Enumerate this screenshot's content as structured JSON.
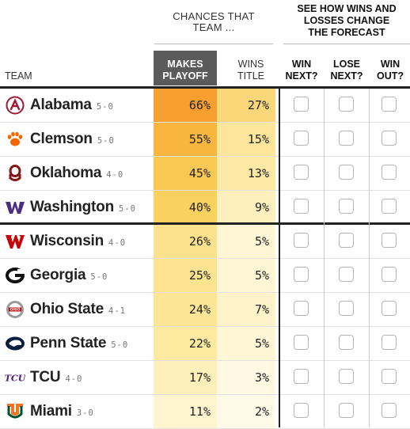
{
  "header": {
    "chances_line1": "CHANCES THAT",
    "chances_line2": "TEAM ...",
    "forecast_line1": "SEE HOW WINS AND",
    "forecast_line2": "LOSSES CHANGE",
    "forecast_line3": "THE FORECAST"
  },
  "columns": {
    "team": "TEAM",
    "makes_line1": "MAKES",
    "makes_line2": "PLAYOFF",
    "wins_line1": "WINS",
    "wins_line2": "TITLE",
    "win_next_line1": "WIN",
    "win_next_line2": "NEXT?",
    "lose_next_line1": "LOSE",
    "lose_next_line2": "NEXT?",
    "win_out_line1": "WIN",
    "win_out_line2": "OUT?"
  },
  "teams": [
    {
      "name": "Alabama",
      "record": "5-0",
      "makes": "66%",
      "wins": "27%",
      "makes_color": "#f7a030",
      "wins_color": "#fcd779",
      "logo": "alabama-a-icon",
      "logo_color": "#9e1b32"
    },
    {
      "name": "Clemson",
      "record": "5-0",
      "makes": "55%",
      "wins": "15%",
      "makes_color": "#f8b63e",
      "wins_color": "#fde59b",
      "logo": "tiger-paw-icon",
      "logo_color": "#f56600"
    },
    {
      "name": "Oklahoma",
      "record": "4-0",
      "makes": "45%",
      "wins": "13%",
      "makes_color": "#f9c853",
      "wins_color": "#fde8a6",
      "logo": "ou-icon",
      "logo_color": "#841617"
    },
    {
      "name": "Washington",
      "record": "5-0",
      "makes": "40%",
      "wins": "9%",
      "makes_color": "#fad05f",
      "wins_color": "#fef0be",
      "logo": "w-icon",
      "logo_color": "#4b2e83"
    },
    {
      "name": "Wisconsin",
      "record": "4-0",
      "makes": "26%",
      "wins": "5%",
      "makes_color": "#fce28c",
      "wins_color": "#fff6d6",
      "logo": "motion-w-icon",
      "logo_color": "#c5050c"
    },
    {
      "name": "Georgia",
      "record": "5-0",
      "makes": "25%",
      "wins": "5%",
      "makes_color": "#fce390",
      "wins_color": "#fff6d6",
      "logo": "g-icon",
      "logo_color": "#ba0c2f"
    },
    {
      "name": "Ohio State",
      "record": "4-1",
      "makes": "24%",
      "wins": "7%",
      "makes_color": "#fce594",
      "wins_color": "#fef3ca",
      "logo": "ohio-state-icon",
      "logo_color": "#bb0000"
    },
    {
      "name": "Penn State",
      "record": "5-0",
      "makes": "22%",
      "wins": "5%",
      "makes_color": "#fde99f",
      "wins_color": "#fff6d6",
      "logo": "nittany-lion-icon",
      "logo_color": "#041e42"
    },
    {
      "name": "TCU",
      "record": "4-0",
      "makes": "17%",
      "wins": "3%",
      "makes_color": "#fdf0b8",
      "wins_color": "#fff9e3",
      "logo": "tcu-icon",
      "logo_color": "#4d1979"
    },
    {
      "name": "Miami",
      "record": "3-0",
      "makes": "11%",
      "wins": "2%",
      "makes_color": "#fef5cf",
      "wins_color": "#fffae8",
      "logo": "u-icon",
      "logo_color": "#f47321"
    }
  ]
}
